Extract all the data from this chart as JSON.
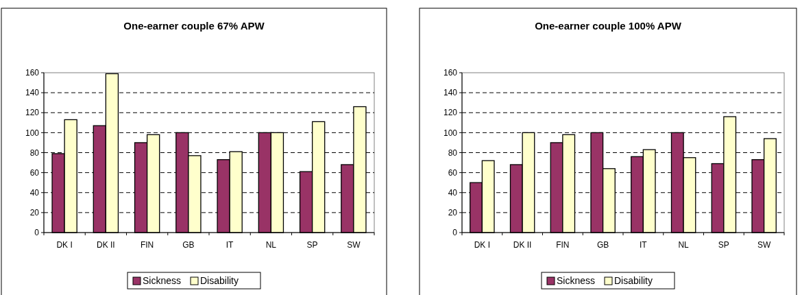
{
  "chart_data": [
    {
      "type": "bar",
      "title": "One-earner couple 67% APW",
      "categories": [
        "DK I",
        "DK II",
        "FIN",
        "GB",
        "IT",
        "NL",
        "SP",
        "SW"
      ],
      "series": [
        {
          "name": "Sickness",
          "color": "#993366",
          "values": [
            79,
            107,
            90,
            100,
            73,
            100,
            61,
            68
          ]
        },
        {
          "name": "Disability",
          "color": "#ffffcc",
          "values": [
            113,
            159,
            98,
            77,
            81,
            100,
            111,
            126
          ]
        }
      ],
      "ylim": [
        0,
        160
      ],
      "yticks": [
        0,
        20,
        40,
        60,
        80,
        100,
        120,
        140,
        160
      ],
      "grid": "y",
      "legend": "bottom"
    },
    {
      "type": "bar",
      "title": "One-earner couple 100% APW",
      "categories": [
        "DK I",
        "DK II",
        "FIN",
        "GB",
        "IT",
        "NL",
        "SP",
        "SW"
      ],
      "series": [
        {
          "name": "Sickness",
          "color": "#993366",
          "values": [
            50,
            68,
            90,
            100,
            76,
            100,
            69,
            73
          ]
        },
        {
          "name": "Disability",
          "color": "#ffffcc",
          "values": [
            72,
            100,
            98,
            64,
            83,
            75,
            116,
            94
          ]
        }
      ],
      "ylim": [
        0,
        160
      ],
      "yticks": [
        0,
        20,
        40,
        60,
        80,
        100,
        120,
        140,
        160
      ],
      "grid": "y",
      "legend": "bottom"
    }
  ]
}
